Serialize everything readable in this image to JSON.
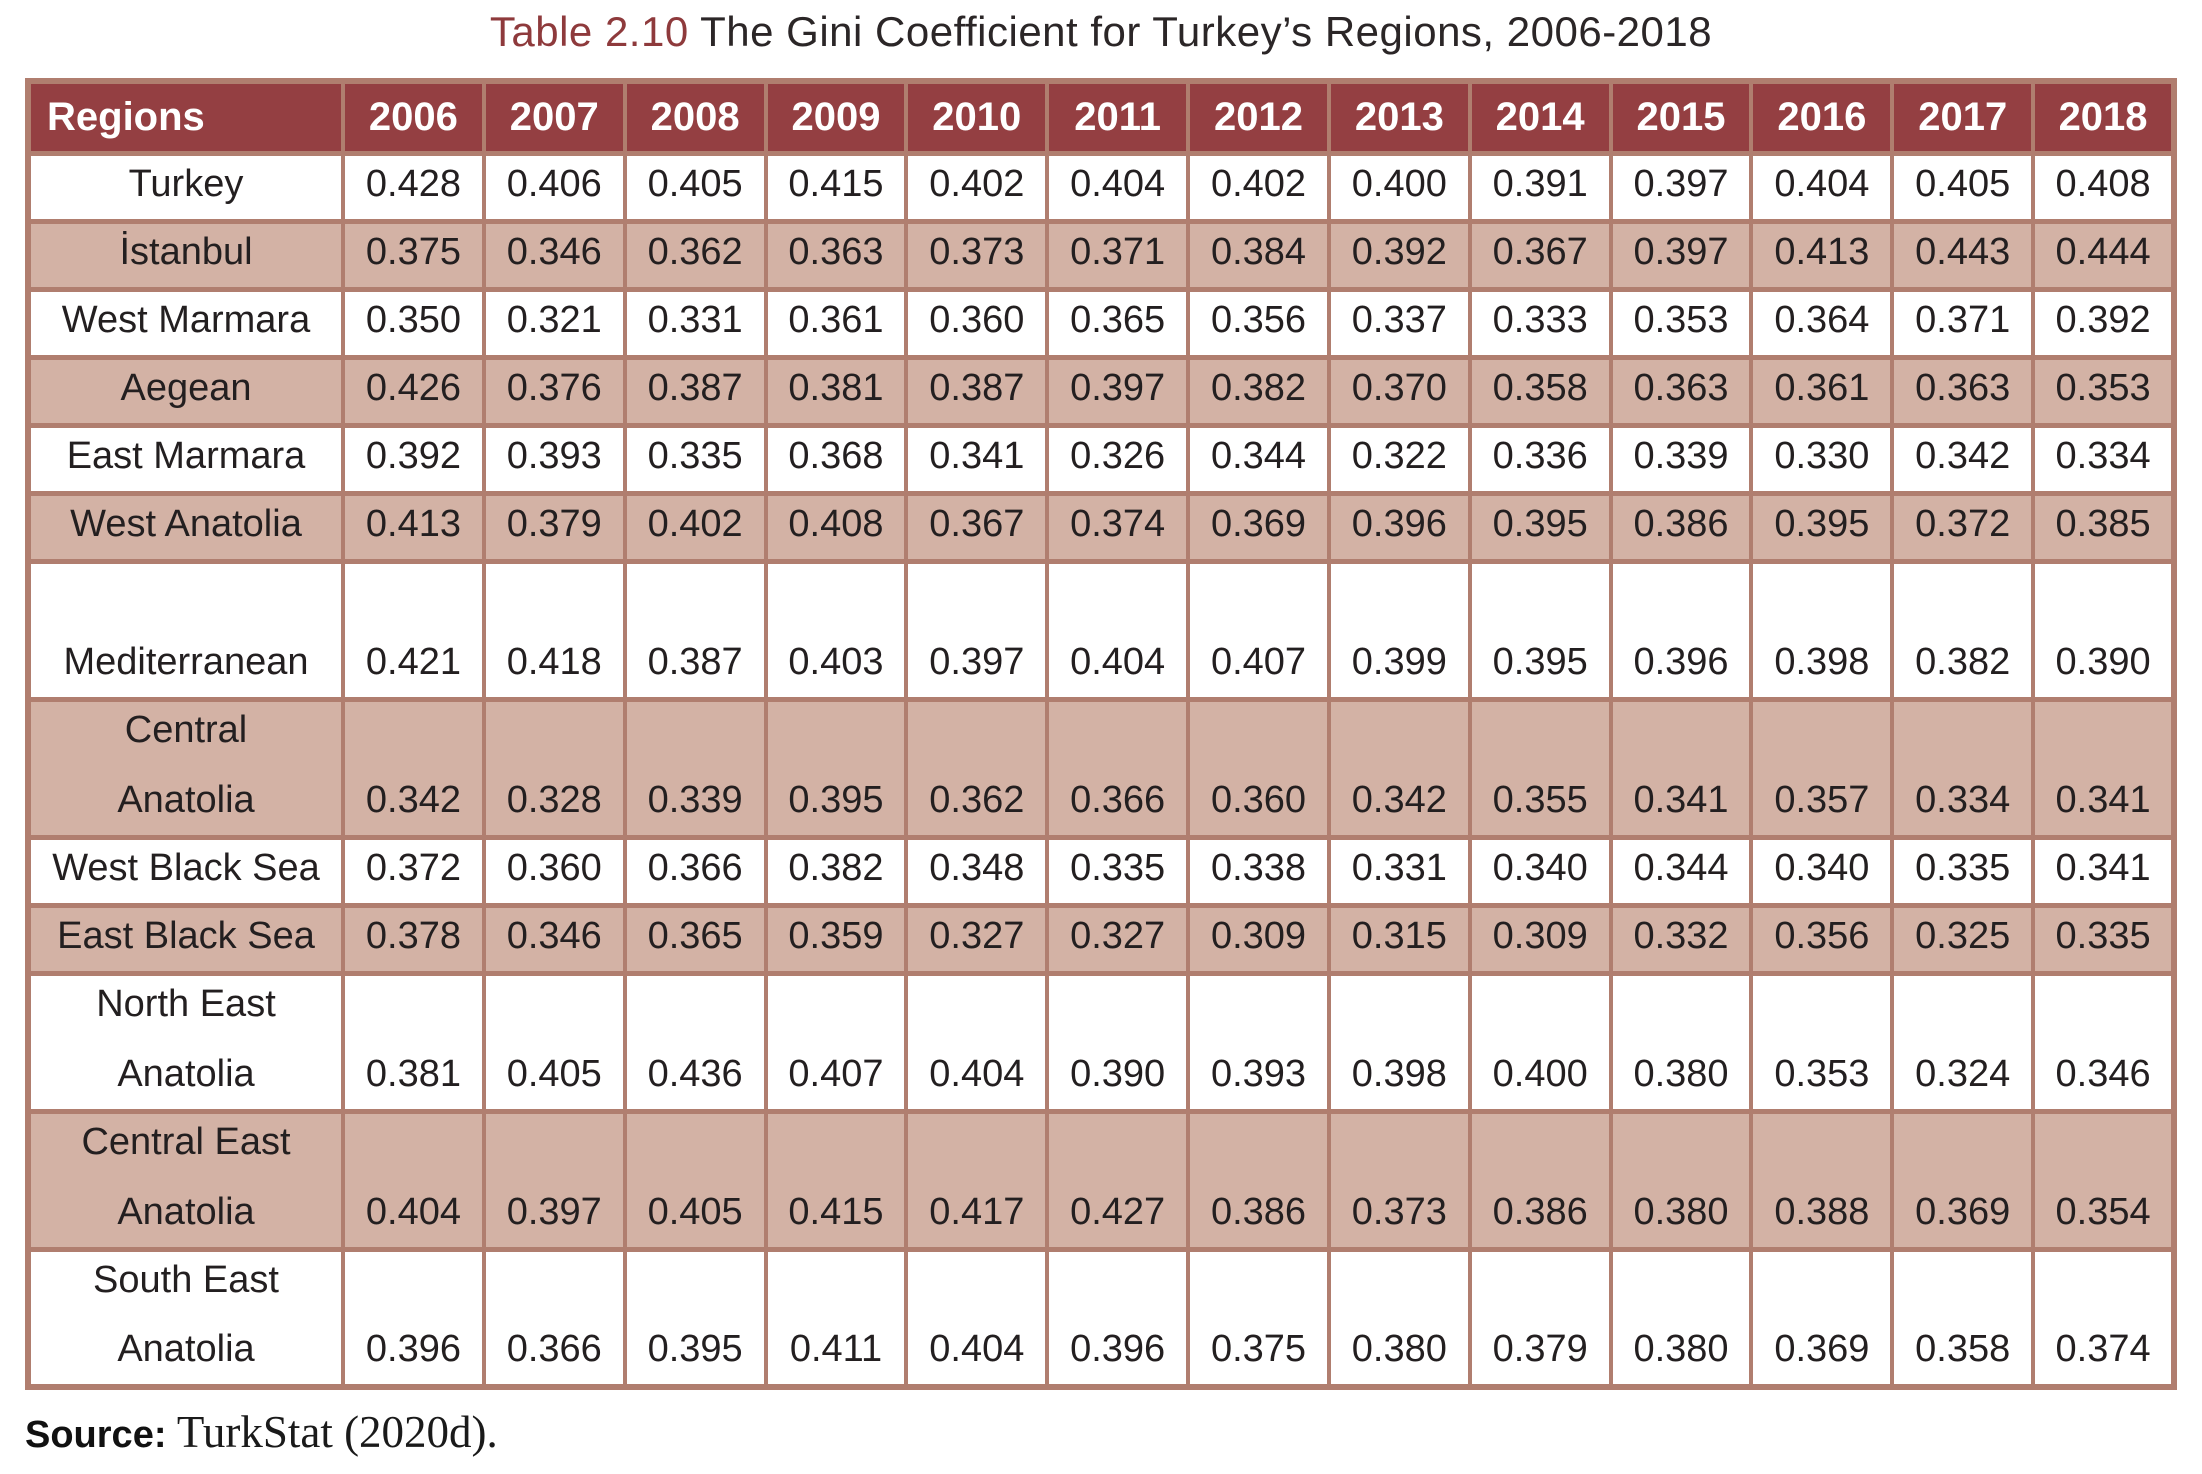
{
  "title": {
    "label": "Table 2.10",
    "text": "The Gini Coefficient for Turkey’s Regions, 2006-2018"
  },
  "table": {
    "header": {
      "region_col": "Regions",
      "years": [
        "2006",
        "2007",
        "2008",
        "2009",
        "2010",
        "2011",
        "2012",
        "2013",
        "2014",
        "2015",
        "2016",
        "2017",
        "2018"
      ]
    },
    "rows": [
      {
        "region": "Turkey",
        "lines": [
          "Turkey"
        ],
        "tall": false,
        "shade": "white",
        "values": [
          "0.428",
          "0.406",
          "0.405",
          "0.415",
          "0.402",
          "0.404",
          "0.402",
          "0.400",
          "0.391",
          "0.397",
          "0.404",
          "0.405",
          "0.408"
        ]
      },
      {
        "region": "İstanbul",
        "lines": [
          "İstanbul"
        ],
        "tall": false,
        "shade": "pink",
        "values": [
          "0.375",
          "0.346",
          "0.362",
          "0.363",
          "0.373",
          "0.371",
          "0.384",
          "0.392",
          "0.367",
          "0.397",
          "0.413",
          "0.443",
          "0.444"
        ]
      },
      {
        "region": "West Marmara",
        "lines": [
          "West Marmara"
        ],
        "tall": false,
        "shade": "white",
        "values": [
          "0.350",
          "0.321",
          "0.331",
          "0.361",
          "0.360",
          "0.365",
          "0.356",
          "0.337",
          "0.333",
          "0.353",
          "0.364",
          "0.371",
          "0.392"
        ]
      },
      {
        "region": "Aegean",
        "lines": [
          "Aegean"
        ],
        "tall": false,
        "shade": "pink",
        "values": [
          "0.426",
          "0.376",
          "0.387",
          "0.381",
          "0.387",
          "0.397",
          "0.382",
          "0.370",
          "0.358",
          "0.363",
          "0.361",
          "0.363",
          "0.353"
        ]
      },
      {
        "region": "East Marmara",
        "lines": [
          "East Marmara"
        ],
        "tall": false,
        "shade": "white",
        "values": [
          "0.392",
          "0.393",
          "0.335",
          "0.368",
          "0.341",
          "0.326",
          "0.344",
          "0.322",
          "0.336",
          "0.339",
          "0.330",
          "0.342",
          "0.334"
        ]
      },
      {
        "region": "West Anatolia",
        "lines": [
          "West Anatolia"
        ],
        "tall": false,
        "shade": "pink",
        "values": [
          "0.413",
          "0.379",
          "0.402",
          "0.408",
          "0.367",
          "0.374",
          "0.369",
          "0.396",
          "0.395",
          "0.386",
          "0.395",
          "0.372",
          "0.385"
        ]
      },
      {
        "region": "Mediterranean",
        "lines": [
          "Mediterranean"
        ],
        "tall": true,
        "shade": "white",
        "values": [
          "0.421",
          "0.418",
          "0.387",
          "0.403",
          "0.397",
          "0.404",
          "0.407",
          "0.399",
          "0.395",
          "0.396",
          "0.398",
          "0.382",
          "0.390"
        ]
      },
      {
        "region": "Central Anatolia",
        "lines": [
          "Central",
          "Anatolia"
        ],
        "tall": true,
        "shade": "pink",
        "values": [
          "0.342",
          "0.328",
          "0.339",
          "0.395",
          "0.362",
          "0.366",
          "0.360",
          "0.342",
          "0.355",
          "0.341",
          "0.357",
          "0.334",
          "0.341"
        ]
      },
      {
        "region": "West Black Sea",
        "lines": [
          "West Black Sea"
        ],
        "tall": false,
        "shade": "white",
        "values": [
          "0.372",
          "0.360",
          "0.366",
          "0.382",
          "0.348",
          "0.335",
          "0.338",
          "0.331",
          "0.340",
          "0.344",
          "0.340",
          "0.335",
          "0.341"
        ]
      },
      {
        "region": "East Black Sea",
        "lines": [
          "East Black Sea"
        ],
        "tall": false,
        "shade": "pink",
        "values": [
          "0.378",
          "0.346",
          "0.365",
          "0.359",
          "0.327",
          "0.327",
          "0.309",
          "0.315",
          "0.309",
          "0.332",
          "0.356",
          "0.325",
          "0.335"
        ]
      },
      {
        "region": "North East Anatolia",
        "lines": [
          "North East",
          "Anatolia"
        ],
        "tall": true,
        "shade": "white",
        "values": [
          "0.381",
          "0.405",
          "0.436",
          "0.407",
          "0.404",
          "0.390",
          "0.393",
          "0.398",
          "0.400",
          "0.380",
          "0.353",
          "0.324",
          "0.346"
        ]
      },
      {
        "region": "Central East Anatolia",
        "lines": [
          "Central East",
          "Anatolia"
        ],
        "tall": true,
        "shade": "pink",
        "values": [
          "0.404",
          "0.397",
          "0.405",
          "0.415",
          "0.417",
          "0.427",
          "0.386",
          "0.373",
          "0.386",
          "0.380",
          "0.388",
          "0.369",
          "0.354"
        ]
      },
      {
        "region": "South East Anatolia",
        "lines": [
          "South East",
          "Anatolia"
        ],
        "tall": true,
        "shade": "white",
        "values": [
          "0.396",
          "0.366",
          "0.395",
          "0.411",
          "0.404",
          "0.396",
          "0.375",
          "0.380",
          "0.379",
          "0.380",
          "0.369",
          "0.358",
          "0.374"
        ]
      }
    ]
  },
  "source": {
    "label": "Source:",
    "text": " TurkStat (2020d)."
  },
  "colors": {
    "header_bg": "#943f42",
    "row_pink": "#d3b2a5",
    "border": "#b07e6f",
    "title_accent": "#8e3a3c",
    "text": "#231f20"
  }
}
